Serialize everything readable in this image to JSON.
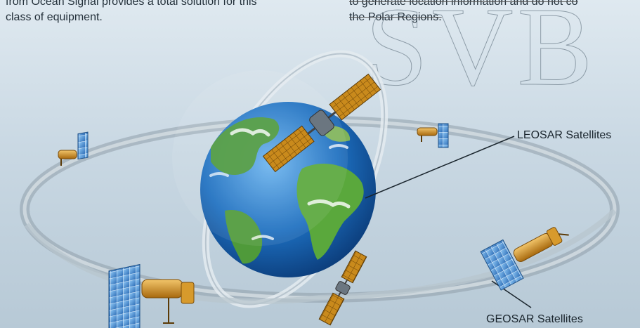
{
  "text": {
    "left_line1": "from Ocean Signal provides a total solution for this",
    "left_line2": "class of equipment.",
    "right_line1": "to generate location information and do not co",
    "right_line2": "the Polar Regions."
  },
  "watermark": "SVB",
  "labels": {
    "leosar": "LEOSAR Satellites",
    "geosar": "GEOSAR Satellites"
  },
  "colors": {
    "ocean": "#1d6fc0",
    "land": "#4f9a3a",
    "orbit": "#aab7c2",
    "solar_panel_gold": "#c98a1c",
    "solar_panel_blue": "#3f86d6",
    "satellite_body": "#d79a2c"
  }
}
